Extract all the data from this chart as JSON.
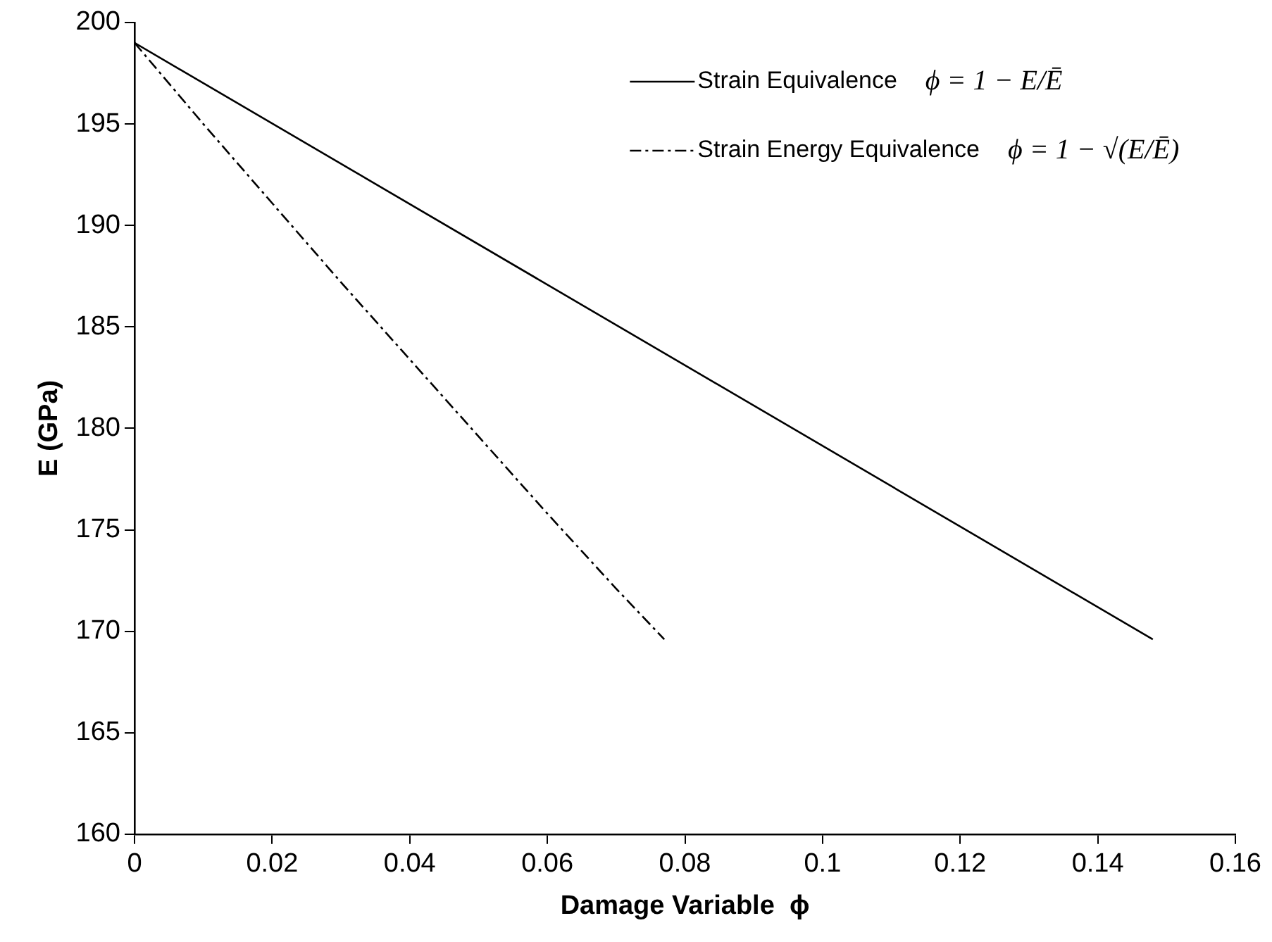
{
  "chart_data": {
    "type": "line",
    "xlabel": "Damage Variable  ϕ",
    "ylabel": "E (GPa)",
    "xlim": [
      0,
      0.16
    ],
    "xticks": [
      0,
      0.02,
      0.04,
      0.06,
      0.08,
      0.1,
      0.12,
      0.14,
      0.16
    ],
    "ylim": [
      160,
      200
    ],
    "yticks": [
      160,
      165,
      170,
      175,
      180,
      185,
      190,
      195,
      200
    ],
    "grid": false,
    "legend": "top right",
    "marker": "none",
    "annotations": [
      "ϕ = 1 − E/Ē",
      "ϕ = 1 − √(E/Ē)"
    ],
    "series": [
      {
        "name": "Strain Equivalence",
        "color": "#000000",
        "line_style": "solid",
        "x": [
          0,
          0.148
        ],
        "values": [
          199,
          169.6
        ]
      },
      {
        "name": "Strain Energy Equivalence",
        "color": "#000000",
        "line_style": "dashdot",
        "x": [
          0,
          0.01,
          0.02,
          0.03,
          0.04,
          0.05,
          0.06,
          0.07,
          0.077
        ],
        "values": [
          199,
          195,
          191.1,
          187.2,
          183.4,
          179.6,
          175.8,
          172.1,
          169.6
        ]
      }
    ]
  }
}
